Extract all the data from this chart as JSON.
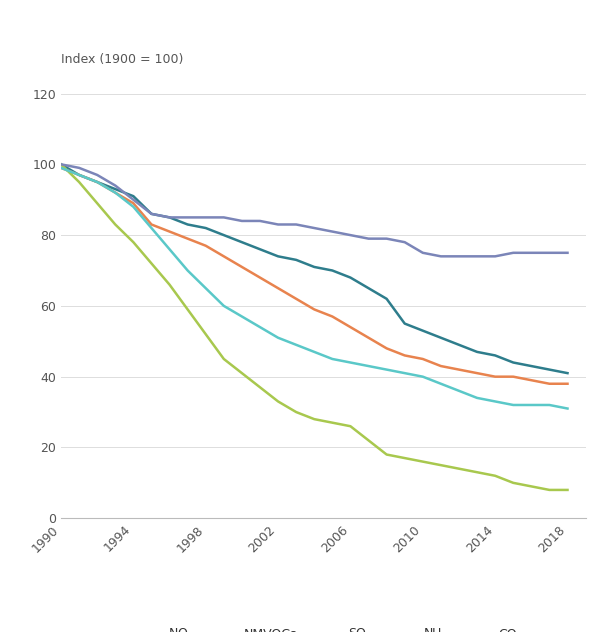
{
  "ylabel": "Index (1900 = 100)",
  "ylim": [
    0,
    125
  ],
  "yticks": [
    0,
    20,
    40,
    60,
    80,
    100,
    120
  ],
  "xticks": [
    1990,
    1994,
    1998,
    2002,
    2006,
    2010,
    2014,
    2018
  ],
  "background_color": "#ffffff",
  "series": {
    "NOx": {
      "color": "#2e7d8c",
      "linewidth": 1.8,
      "data": {
        "1990": 100,
        "1991": 97,
        "1992": 95,
        "1993": 93,
        "1994": 91,
        "1995": 86,
        "1996": 85,
        "1997": 83,
        "1998": 82,
        "1999": 80,
        "2000": 78,
        "2001": 76,
        "2002": 74,
        "2003": 73,
        "2004": 71,
        "2005": 70,
        "2006": 68,
        "2007": 65,
        "2008": 62,
        "2009": 55,
        "2010": 53,
        "2011": 51,
        "2012": 49,
        "2013": 47,
        "2014": 46,
        "2015": 44,
        "2016": 43,
        "2017": 42,
        "2018": 41
      }
    },
    "NMVOCs": {
      "color": "#e8834e",
      "linewidth": 1.8,
      "data": {
        "1990": 99,
        "1991": 97,
        "1992": 95,
        "1993": 92,
        "1994": 89,
        "1995": 83,
        "1996": 81,
        "1997": 79,
        "1998": 77,
        "1999": 74,
        "2000": 71,
        "2001": 68,
        "2002": 65,
        "2003": 62,
        "2004": 59,
        "2005": 57,
        "2006": 54,
        "2007": 51,
        "2008": 48,
        "2009": 46,
        "2010": 45,
        "2011": 43,
        "2012": 42,
        "2013": 41,
        "2014": 40,
        "2015": 40,
        "2016": 39,
        "2017": 38,
        "2018": 38
      }
    },
    "SOx": {
      "color": "#a8c84e",
      "linewidth": 1.8,
      "data": {
        "1990": 100,
        "1991": 95,
        "1992": 89,
        "1993": 83,
        "1994": 78,
        "1995": 72,
        "1996": 66,
        "1997": 59,
        "1998": 52,
        "1999": 45,
        "2000": 41,
        "2001": 37,
        "2002": 33,
        "2003": 30,
        "2004": 28,
        "2005": 27,
        "2006": 26,
        "2007": 22,
        "2008": 18,
        "2009": 17,
        "2010": 16,
        "2011": 15,
        "2012": 14,
        "2013": 13,
        "2014": 12,
        "2015": 10,
        "2016": 9,
        "2017": 8,
        "2018": 8
      }
    },
    "NH3": {
      "color": "#7b85b8",
      "linewidth": 1.8,
      "data": {
        "1990": 100,
        "1991": 99,
        "1992": 97,
        "1993": 94,
        "1994": 90,
        "1995": 86,
        "1996": 85,
        "1997": 85,
        "1998": 85,
        "1999": 85,
        "2000": 84,
        "2001": 84,
        "2002": 83,
        "2003": 83,
        "2004": 82,
        "2005": 81,
        "2006": 80,
        "2007": 79,
        "2008": 79,
        "2009": 78,
        "2010": 75,
        "2011": 74,
        "2012": 74,
        "2013": 74,
        "2014": 74,
        "2015": 75,
        "2016": 75,
        "2017": 75,
        "2018": 75
      }
    },
    "CO": {
      "color": "#5ac8c8",
      "linewidth": 1.8,
      "data": {
        "1990": 99,
        "1991": 97,
        "1992": 95,
        "1993": 92,
        "1994": 88,
        "1995": 82,
        "1996": 76,
        "1997": 70,
        "1998": 65,
        "1999": 60,
        "2000": 57,
        "2001": 54,
        "2002": 51,
        "2003": 49,
        "2004": 47,
        "2005": 45,
        "2006": 44,
        "2007": 43,
        "2008": 42,
        "2009": 41,
        "2010": 40,
        "2011": 38,
        "2012": 36,
        "2013": 34,
        "2014": 33,
        "2015": 32,
        "2016": 32,
        "2017": 32,
        "2018": 31
      }
    }
  }
}
